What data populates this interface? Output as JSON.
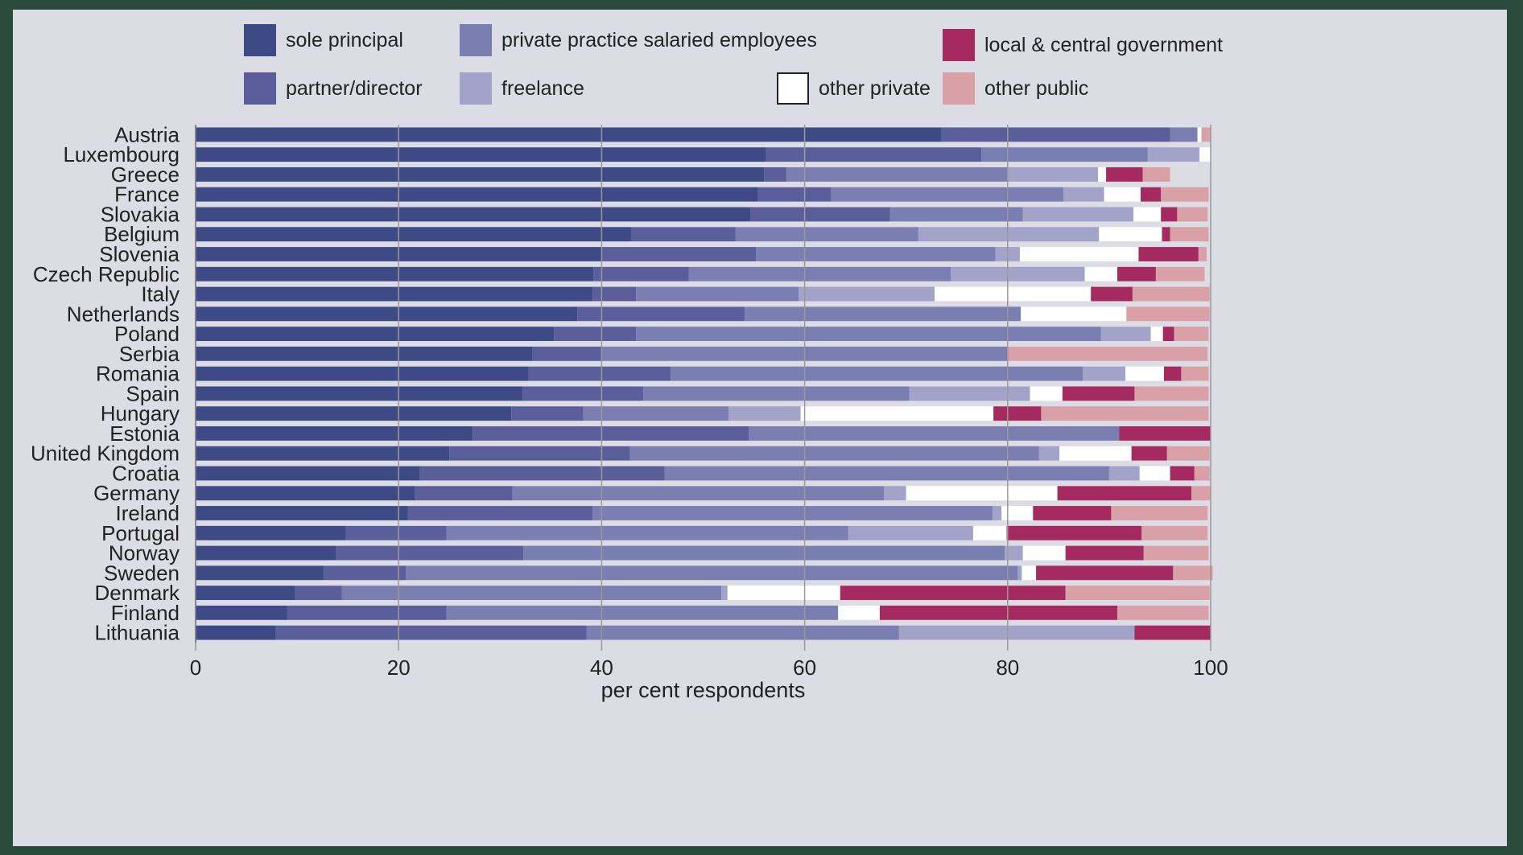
{
  "chart_data": {
    "type": "bar",
    "orientation": "horizontal",
    "stacked": true,
    "xlabel": "per cent respondents",
    "xlim": [
      0,
      100
    ],
    "xticks": [
      "0",
      "20",
      "40",
      "60",
      "80",
      "100"
    ],
    "grid": "vertical",
    "categories": [
      "Austria",
      "Luxembourg",
      "Greece",
      "France",
      "Slovakia",
      "Belgium",
      "Slovenia",
      "Czech Republic",
      "Italy",
      "Netherlands",
      "Poland",
      "Serbia",
      "Romania",
      "Spain",
      "Hungary",
      "Estonia",
      "United Kingdom",
      "Croatia",
      "Germany",
      "Ireland",
      "Portugal",
      "Norway",
      "Sweden",
      "Denmark",
      "Finland",
      "Lithuania"
    ],
    "series": [
      {
        "name": "sole principal",
        "color": "#3d4a85",
        "values": [
          73.5,
          56.2,
          56.0,
          55.4,
          54.7,
          42.9,
          40.1,
          39.2,
          39.1,
          37.6,
          35.3,
          33.2,
          32.8,
          32.2,
          31.1,
          27.3,
          25.0,
          22.1,
          21.6,
          20.9,
          14.8,
          13.8,
          12.6,
          9.8,
          9.0,
          7.9
        ]
      },
      {
        "name": "partner/director",
        "color": "#5a5f9c",
        "values": [
          22.5,
          21.2,
          2.2,
          7.2,
          13.7,
          10.3,
          15.1,
          9.4,
          4.3,
          16.5,
          8.1,
          6.9,
          14.0,
          11.9,
          7.1,
          27.2,
          17.8,
          24.1,
          9.6,
          18.2,
          9.9,
          18.5,
          8.1,
          4.6,
          15.7,
          30.6
        ]
      },
      {
        "name": "private practice salaried employees",
        "color": "#7b7eb0",
        "values": [
          2.7,
          16.4,
          21.8,
          22.9,
          13.1,
          18.0,
          23.6,
          25.8,
          16.0,
          27.2,
          45.8,
          39.9,
          40.6,
          26.2,
          14.3,
          36.5,
          40.3,
          43.8,
          36.6,
          39.4,
          39.6,
          47.4,
          60.3,
          37.4,
          38.6,
          30.8
        ]
      },
      {
        "name": "freelance",
        "color": "#a3a3c9",
        "values": [
          0,
          5.1,
          8.9,
          4.0,
          10.9,
          17.8,
          2.4,
          13.2,
          13.4,
          0,
          4.9,
          0,
          4.2,
          11.9,
          7.1,
          0,
          2.0,
          3.0,
          2.2,
          0.9,
          12.3,
          1.8,
          0.4,
          0.6,
          0,
          23.2
        ]
      },
      {
        "name": "other private",
        "color": "#ffffff",
        "values": [
          0.4,
          1.1,
          0.8,
          3.6,
          2.7,
          6.2,
          11.7,
          3.2,
          15.4,
          10.4,
          1.2,
          0,
          3.8,
          3.2,
          19.0,
          0,
          7.1,
          3.0,
          14.9,
          3.1,
          3.3,
          4.2,
          1.4,
          11.1,
          4.1,
          0
        ]
      },
      {
        "name": "local & central government",
        "color": "#a52a5f",
        "values": [
          0,
          0,
          3.6,
          2.0,
          1.6,
          0.8,
          5.9,
          3.8,
          4.1,
          0,
          1.1,
          0,
          1.7,
          7.1,
          4.7,
          9.0,
          3.5,
          2.4,
          13.2,
          7.7,
          13.3,
          7.7,
          13.5,
          22.2,
          23.4,
          7.5
        ]
      },
      {
        "name": "other public",
        "color": "#d9a0a8",
        "values": [
          0.9,
          0,
          2.7,
          4.7,
          3.0,
          3.8,
          0.8,
          4.8,
          7.6,
          8.2,
          3.4,
          19.7,
          2.7,
          7.3,
          16.5,
          0,
          4.2,
          1.5,
          1.9,
          9.5,
          6.5,
          6.4,
          3.9,
          14.2,
          9.0,
          0
        ]
      }
    ],
    "legend": {
      "position": "top",
      "columns": 4
    }
  }
}
